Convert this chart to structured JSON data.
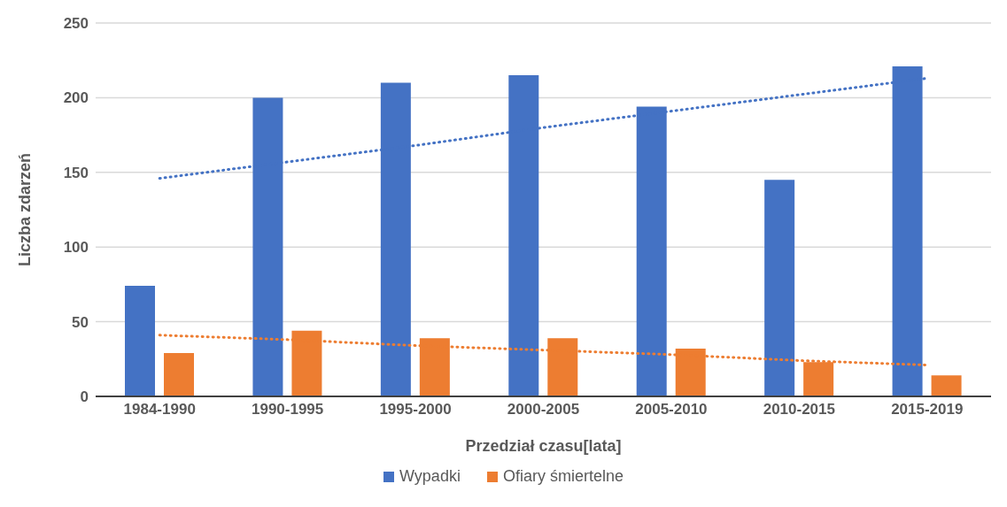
{
  "chart_data": {
    "type": "bar",
    "xlabel": "Przedział czasu[lata]",
    "ylabel": "Liczba zdarzeń",
    "categories": [
      "1984-1990",
      "1990-1995",
      "1995-2000",
      "2000-2005",
      "2005-2010",
      "2010-2015",
      "2015-2019"
    ],
    "series": [
      {
        "name": "Wypadki",
        "color": "#4472c4",
        "values": [
          74,
          200,
          210,
          215,
          194,
          145,
          221
        ]
      },
      {
        "name": "Ofiary śmiertelne",
        "color": "#ed7d31",
        "values": [
          29,
          44,
          39,
          39,
          32,
          23,
          14
        ]
      },
      {
        "type": "line",
        "color": "#4472c4",
        "line_style": "dotted",
        "values": [
          146,
          157,
          168,
          180,
          191,
          202,
          213
        ]
      },
      {
        "type": "line",
        "color": "#ed7d31",
        "line_style": "dotted",
        "values": [
          41,
          38,
          34,
          31,
          28,
          24,
          21
        ]
      }
    ],
    "ylim": [
      0,
      250
    ],
    "yticks": [
      0,
      50,
      100,
      150,
      200,
      250
    ],
    "grid": "y",
    "legend": "bottom",
    "marker": "none"
  }
}
